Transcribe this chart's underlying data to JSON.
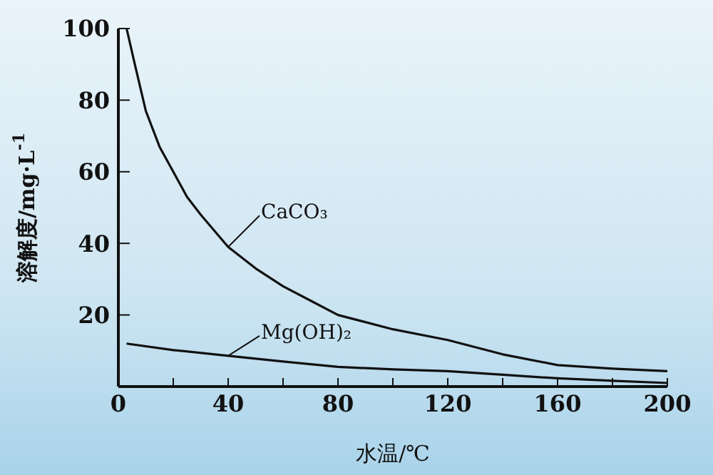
{
  "chart_data": {
    "type": "line",
    "xlabel": "水温/℃",
    "ylabel": "溶解度/mg·L$^{-1}$",
    "xlim": [
      0,
      200
    ],
    "ylim": [
      0,
      100
    ],
    "xticks": [
      0,
      {
        "value": 20,
        "label": null
      },
      40,
      {
        "value": 60,
        "label": null
      },
      80,
      {
        "value": 100,
        "label": null
      },
      120,
      {
        "value": 140,
        "label": null
      },
      160,
      {
        "value": 180,
        "label": null
      },
      200
    ],
    "yticks": [
      20,
      40,
      60,
      80,
      100
    ],
    "marker": "none",
    "line_style": "solid",
    "series": [
      {
        "name": "CaCO₃",
        "color": "#111111",
        "x": [
          3,
          6,
          10,
          15,
          20,
          25,
          30,
          40,
          50,
          60,
          70,
          80,
          90,
          100,
          120,
          140,
          160,
          180,
          200
        ],
        "values": [
          100,
          90,
          77,
          67,
          60,
          53,
          48,
          39,
          33,
          28,
          24,
          20,
          18,
          16,
          13,
          9,
          6,
          5,
          4.3
        ]
      },
      {
        "name": "Mg(OH)₂",
        "color": "#111111",
        "x": [
          3,
          20,
          40,
          60,
          80,
          100,
          120,
          140,
          160,
          180,
          200
        ],
        "values": [
          12,
          10.2,
          8.6,
          7,
          5.5,
          4.8,
          4.3,
          3.3,
          2.3,
          1.6,
          1
        ]
      }
    ]
  }
}
